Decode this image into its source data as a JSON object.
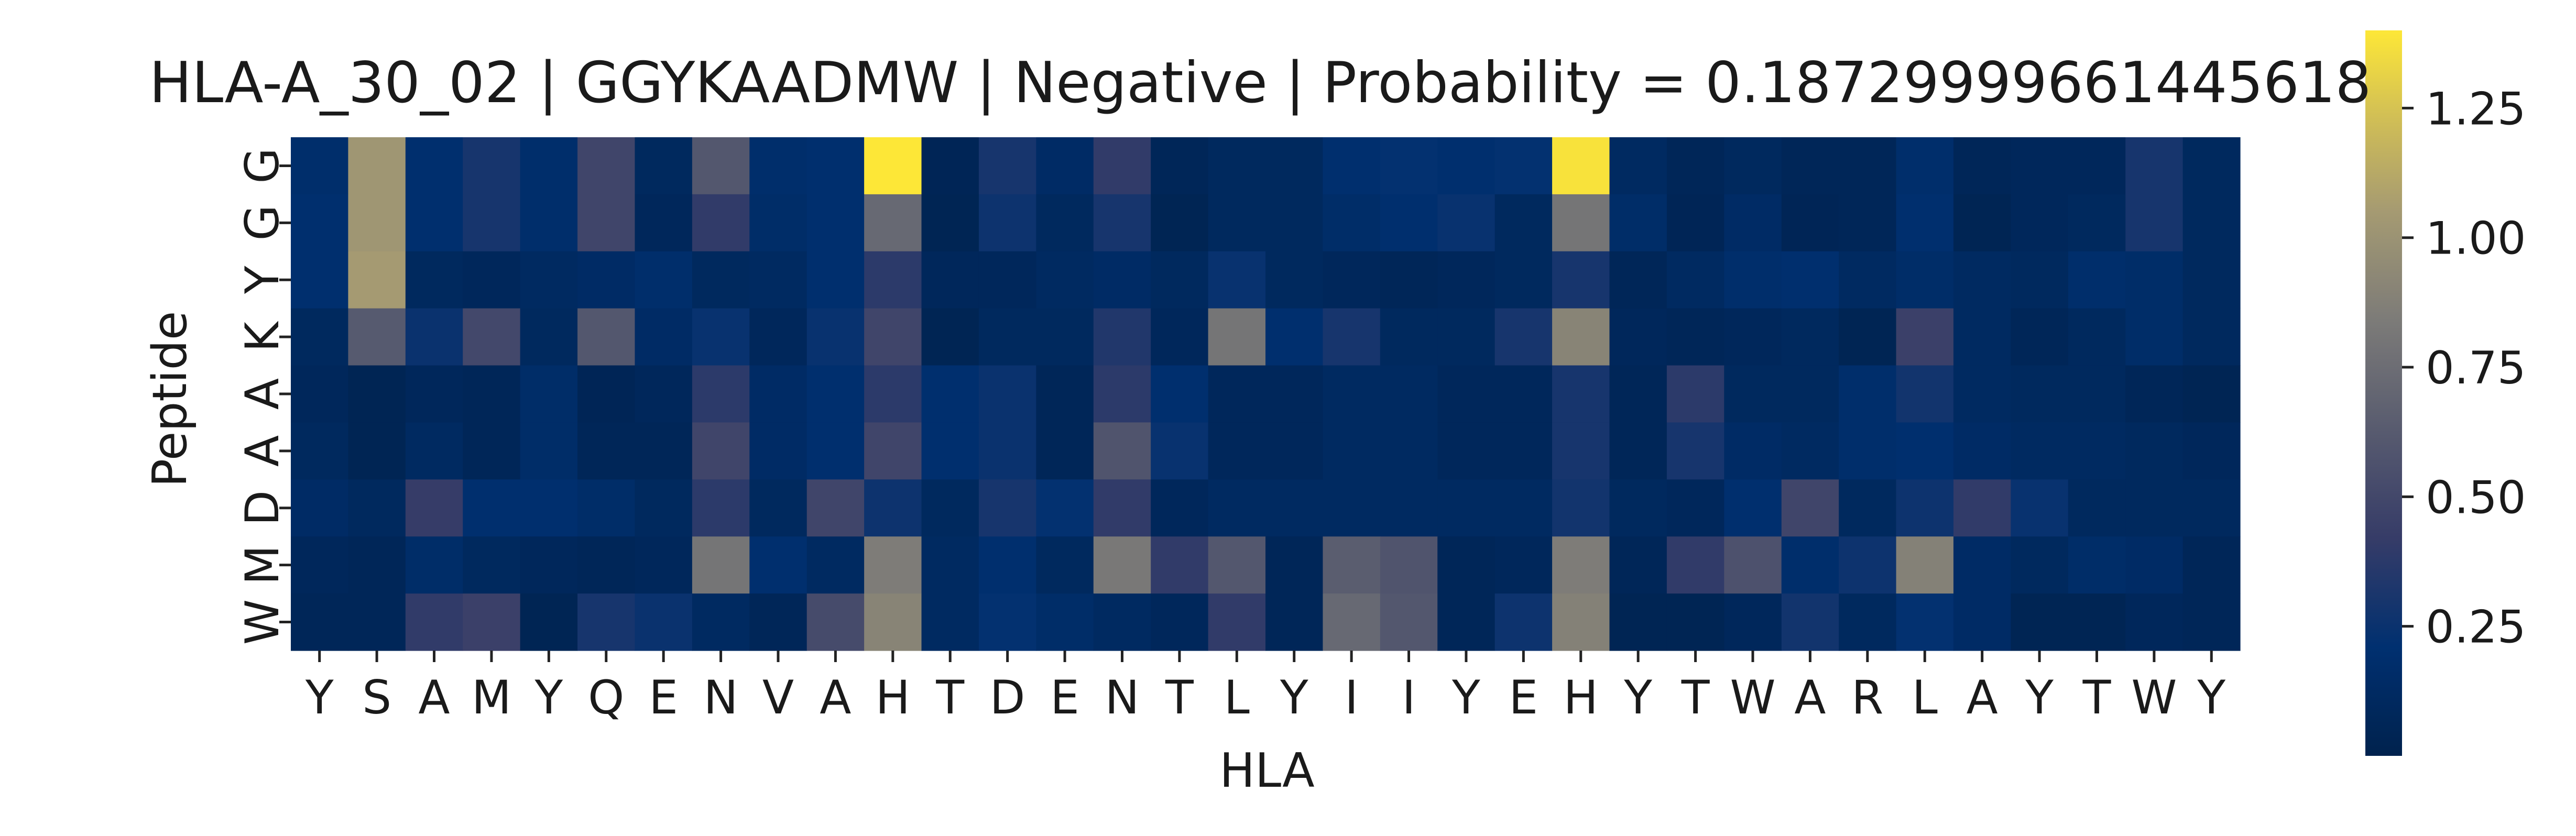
{
  "chart_data": {
    "type": "heatmap",
    "title": "HLA-A_30_02 | GGYKAADMW | Negative | Probability = 0.18729999661445618",
    "xlabel": "HLA",
    "ylabel": "Peptide",
    "x_categories": [
      "Y",
      "S",
      "A",
      "M",
      "Y",
      "Q",
      "E",
      "N",
      "V",
      "A",
      "H",
      "T",
      "D",
      "E",
      "N",
      "T",
      "L",
      "Y",
      "I",
      "I",
      "Y",
      "E",
      "H",
      "Y",
      "T",
      "W",
      "A",
      "R",
      "L",
      "A",
      "Y",
      "T",
      "W",
      "Y"
    ],
    "y_categories": [
      "G",
      "G",
      "Y",
      "K",
      "A",
      "A",
      "D",
      "M",
      "W"
    ],
    "values": [
      [
        0.18,
        1.02,
        0.2,
        0.3,
        0.18,
        0.48,
        0.1,
        0.6,
        0.18,
        0.2,
        1.4,
        0.05,
        0.3,
        0.14,
        0.4,
        0.06,
        0.1,
        0.1,
        0.2,
        0.22,
        0.2,
        0.22,
        1.38,
        0.12,
        0.06,
        0.1,
        0.06,
        0.06,
        0.18,
        0.06,
        0.08,
        0.08,
        0.3,
        0.1
      ],
      [
        0.2,
        1.02,
        0.2,
        0.3,
        0.18,
        0.48,
        0.08,
        0.4,
        0.16,
        0.2,
        0.72,
        0.04,
        0.26,
        0.1,
        0.3,
        0.04,
        0.1,
        0.1,
        0.16,
        0.2,
        0.24,
        0.1,
        0.8,
        0.16,
        0.05,
        0.14,
        0.05,
        0.06,
        0.2,
        0.04,
        0.08,
        0.1,
        0.3,
        0.1
      ],
      [
        0.2,
        1.05,
        0.1,
        0.08,
        0.12,
        0.14,
        0.18,
        0.1,
        0.12,
        0.2,
        0.38,
        0.08,
        0.08,
        0.12,
        0.14,
        0.1,
        0.24,
        0.1,
        0.08,
        0.06,
        0.08,
        0.1,
        0.3,
        0.06,
        0.12,
        0.18,
        0.2,
        0.12,
        0.16,
        0.12,
        0.1,
        0.18,
        0.16,
        0.1
      ],
      [
        0.1,
        0.62,
        0.25,
        0.5,
        0.1,
        0.6,
        0.14,
        0.24,
        0.08,
        0.24,
        0.48,
        0.04,
        0.1,
        0.1,
        0.34,
        0.08,
        0.8,
        0.2,
        0.3,
        0.1,
        0.1,
        0.3,
        0.9,
        0.08,
        0.06,
        0.08,
        0.1,
        0.04,
        0.45,
        0.12,
        0.06,
        0.1,
        0.16,
        0.1
      ],
      [
        0.08,
        0.04,
        0.08,
        0.06,
        0.16,
        0.05,
        0.08,
        0.38,
        0.14,
        0.2,
        0.38,
        0.2,
        0.25,
        0.06,
        0.38,
        0.2,
        0.08,
        0.08,
        0.12,
        0.12,
        0.08,
        0.08,
        0.3,
        0.06,
        0.38,
        0.1,
        0.1,
        0.18,
        0.28,
        0.12,
        0.1,
        0.1,
        0.06,
        0.04
      ],
      [
        0.1,
        0.04,
        0.12,
        0.06,
        0.16,
        0.06,
        0.06,
        0.48,
        0.14,
        0.2,
        0.48,
        0.2,
        0.25,
        0.06,
        0.58,
        0.24,
        0.08,
        0.08,
        0.12,
        0.12,
        0.08,
        0.08,
        0.3,
        0.06,
        0.3,
        0.14,
        0.12,
        0.18,
        0.2,
        0.14,
        0.12,
        0.12,
        0.1,
        0.08
      ],
      [
        0.14,
        0.1,
        0.42,
        0.2,
        0.2,
        0.16,
        0.1,
        0.38,
        0.1,
        0.48,
        0.26,
        0.1,
        0.3,
        0.22,
        0.4,
        0.08,
        0.12,
        0.12,
        0.12,
        0.12,
        0.12,
        0.12,
        0.28,
        0.1,
        0.08,
        0.2,
        0.48,
        0.1,
        0.26,
        0.4,
        0.24,
        0.1,
        0.1,
        0.1
      ],
      [
        0.08,
        0.06,
        0.16,
        0.1,
        0.08,
        0.06,
        0.08,
        0.8,
        0.2,
        0.12,
        0.85,
        0.12,
        0.2,
        0.1,
        0.82,
        0.4,
        0.6,
        0.06,
        0.64,
        0.58,
        0.06,
        0.08,
        0.85,
        0.06,
        0.4,
        0.56,
        0.18,
        0.26,
        0.88,
        0.14,
        0.1,
        0.16,
        0.14,
        0.06
      ],
      [
        0.06,
        0.06,
        0.4,
        0.45,
        0.04,
        0.3,
        0.25,
        0.12,
        0.06,
        0.52,
        0.9,
        0.12,
        0.22,
        0.16,
        0.12,
        0.08,
        0.4,
        0.06,
        0.72,
        0.6,
        0.06,
        0.26,
        0.88,
        0.04,
        0.04,
        0.08,
        0.28,
        0.1,
        0.22,
        0.14,
        0.04,
        0.04,
        0.08,
        0.06
      ]
    ],
    "colorscale": "cividis",
    "vmin": 0.0,
    "vmax": 1.4,
    "colorbar_ticks": [
      0.25,
      0.5,
      0.75,
      1.0,
      1.25
    ],
    "colorbar_tick_labels": [
      "0.25",
      "0.50",
      "0.75",
      "1.00",
      "1.25"
    ],
    "grid": false
  }
}
